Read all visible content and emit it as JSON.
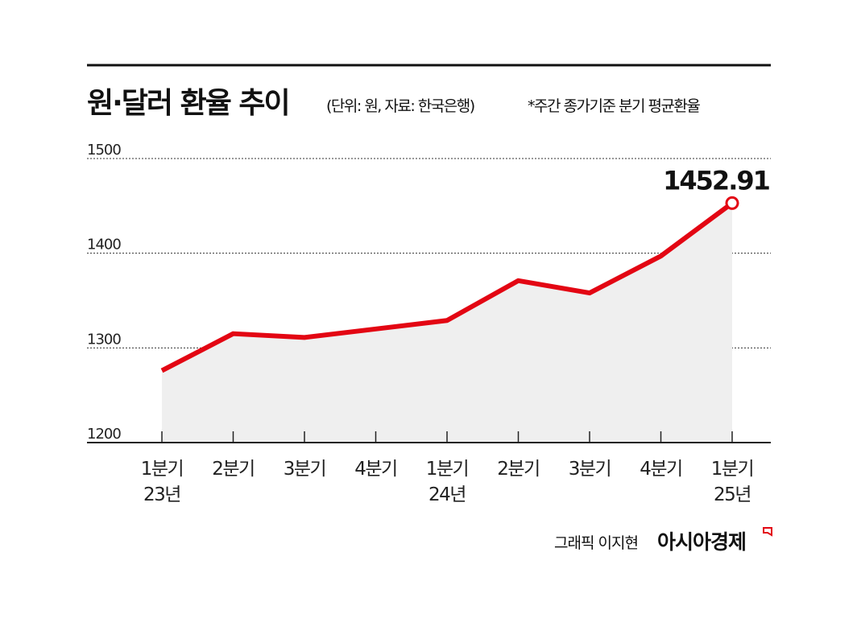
{
  "title": "원·달러 환율 추이",
  "subtitle": "(단위: 원, 자료: 한국은행)",
  "note": "*주간 종가기준 분기 평균환율",
  "credit": "그래픽 이지현",
  "brand": "아시아경제",
  "colors": {
    "line": "#e30613",
    "area": "#efefef",
    "grid": "#333333"
  },
  "chart_data": {
    "type": "area",
    "title": "원·달러 환율 추이",
    "categories": [
      [
        "1분기",
        "23년"
      ],
      [
        "2분기",
        ""
      ],
      [
        "3분기",
        ""
      ],
      [
        "4분기",
        ""
      ],
      [
        "1분기",
        "24년"
      ],
      [
        "2분기",
        ""
      ],
      [
        "3분기",
        ""
      ],
      [
        "4분기",
        ""
      ],
      [
        "1분기",
        "25년"
      ]
    ],
    "values": [
      1276,
      1315,
      1311,
      1320,
      1329,
      1371,
      1358,
      1397,
      1452.91
    ],
    "data_labels": [
      {
        "index": 8,
        "text": "1452.91"
      }
    ],
    "ylim": [
      1200,
      1500
    ],
    "yticks": [
      "1200",
      "1300",
      "1400",
      "1500"
    ],
    "grid": true,
    "xlabel": "",
    "ylabel": ""
  }
}
